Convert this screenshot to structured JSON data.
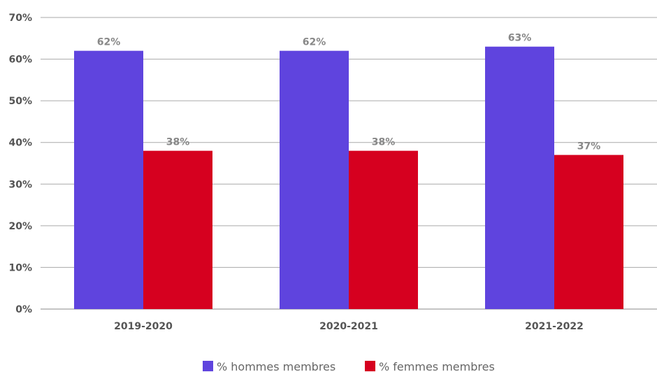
{
  "chart_data": {
    "type": "bar",
    "categories": [
      "2019-2020",
      "2020-2021",
      "2021-2022"
    ],
    "series": [
      {
        "name": "% hommes membres",
        "values": [
          62,
          62,
          63
        ],
        "labels": [
          "62%",
          "62%",
          "63%"
        ],
        "color": "#5f44de"
      },
      {
        "name": "% femmes membres",
        "values": [
          38,
          38,
          37
        ],
        "labels": [
          "38%",
          "38%",
          "37%"
        ],
        "color": "#d6001f"
      }
    ],
    "ylim": [
      0,
      70
    ],
    "yticks": [
      0,
      10,
      20,
      30,
      40,
      50,
      60,
      70
    ],
    "ytick_labels": [
      "0%",
      "10%",
      "20%",
      "30%",
      "40%",
      "50%",
      "60%",
      "70%"
    ],
    "grid": true,
    "legend_position": "bottom"
  }
}
